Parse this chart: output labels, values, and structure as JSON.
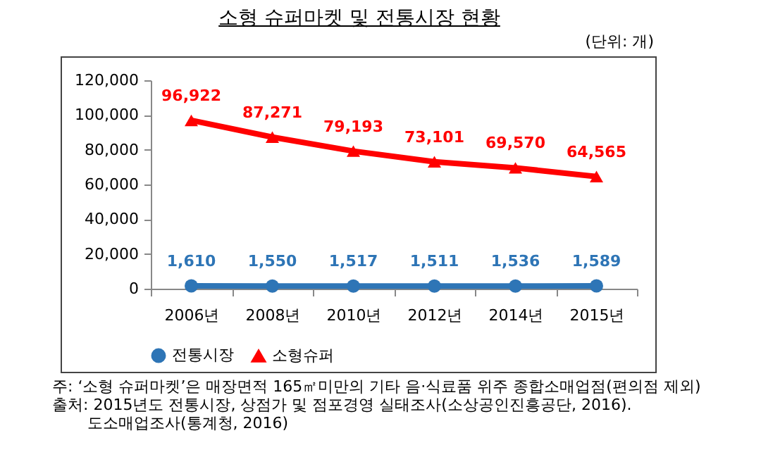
{
  "chart_data": {
    "type": "line",
    "title": "소형 슈퍼마켓 및 전통시장 현황",
    "categories": [
      "2006년",
      "2008년",
      "2010년",
      "2012년",
      "2014년",
      "2015년"
    ],
    "series": [
      {
        "name": "전통시장",
        "color": "#2e75b6",
        "marker": "circle",
        "values": [
          1610,
          1550,
          1517,
          1511,
          1536,
          1589
        ],
        "value_labels": [
          "1,610",
          "1,550",
          "1,517",
          "1,511",
          "1,536",
          "1,589"
        ]
      },
      {
        "name": "소형슈퍼",
        "color": "#ff0000",
        "marker": "triangle",
        "values": [
          96922,
          87271,
          79193,
          73101,
          69570,
          64565
        ],
        "value_labels": [
          "96,922",
          "87,271",
          "79,193",
          "73,101",
          "69,570",
          "64,565"
        ]
      }
    ],
    "ylim": [
      0,
      120000
    ],
    "yticks": [
      0,
      {
        "value": 20000,
        "label": "20,000"
      },
      {
        "value": 40000,
        "label": "40,000"
      },
      {
        "value": 60000,
        "label": "60,000"
      },
      {
        "value": 80000,
        "label": "80,000"
      },
      {
        "value": 100000,
        "label": "100,000"
      },
      {
        "value": 120000,
        "label": "120,000"
      }
    ],
    "grid": false,
    "legend": "bottom",
    "data_labels": true,
    "annotations": [
      "(단위: 개)",
      "주: ‘소형 슈퍼마켓’은 매장면적 165㎡미만의 기타 음·식료품 위주 종합소매업점(편의점 제외)",
      "출처: 2015년도 전통시장, 상점가 및 점포경영 실태조사(소상공인진흥공단, 2016).",
      "도소매업조사(통계청, 2016)"
    ]
  }
}
